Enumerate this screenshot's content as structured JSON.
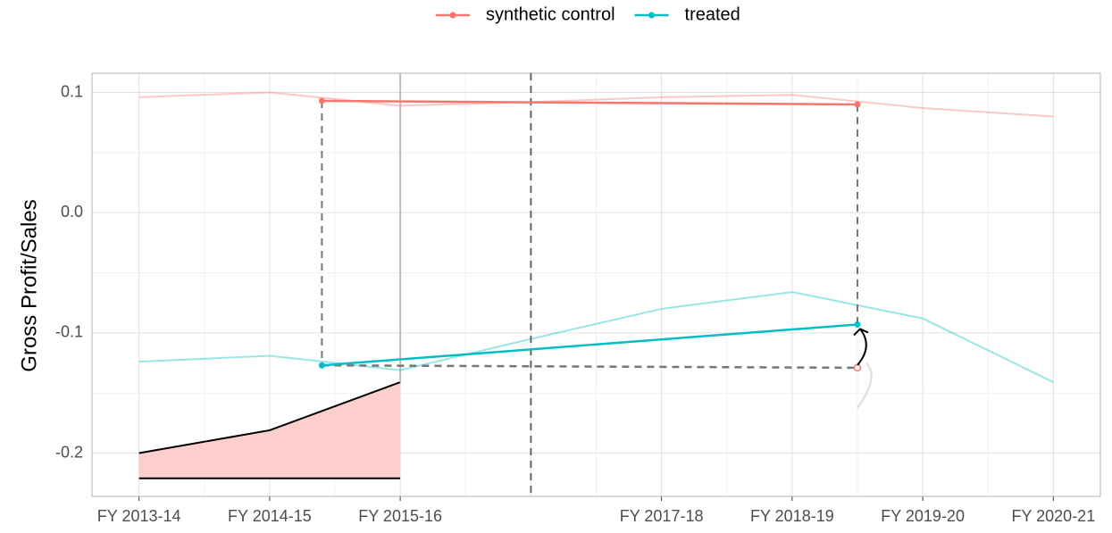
{
  "chart_data": {
    "type": "line",
    "y_label": "Gross Profit/Sales",
    "legend": "top",
    "x": [
      0,
      1,
      2,
      3,
      4,
      5,
      6,
      7
    ],
    "xlim": [
      -0.36,
      7.36
    ],
    "xticks": [
      {
        "value": 0,
        "label": "FY 2013-14"
      },
      {
        "value": 1,
        "label": "FY 2014-15"
      },
      {
        "value": 2,
        "label": "FY 2015-16"
      },
      {
        "value": 4,
        "label": "FY 2017-18"
      },
      {
        "value": 5,
        "label": "FY 2018-19"
      },
      {
        "value": 6,
        "label": "FY 2019-20"
      },
      {
        "value": 7,
        "label": "FY 2020-21"
      }
    ],
    "ylim": [
      -0.236,
      0.116
    ],
    "yticks": [
      -0.2,
      -0.1,
      {
        "value": 0,
        "label": "0.0"
      },
      0.1
    ],
    "grid": true,
    "series": [
      {
        "name": "synthetic control",
        "color": "#F8766D",
        "values": [
          0.096,
          0.1,
          0.089,
          0.092,
          0.096,
          0.098,
          0.087,
          0.08
        ]
      },
      {
        "name": "treated",
        "color": "#00BFC4",
        "values": [
          -0.124,
          -0.119,
          -0.131,
          -0.105,
          -0.08,
          -0.066,
          -0.088,
          -0.141
        ]
      }
    ],
    "treatment_x": 3,
    "overlay": {
      "x": [
        1.4,
        5.5
      ],
      "synthetic_control": [
        0.093,
        0.09
      ],
      "treated": [
        -0.127,
        -0.093
      ],
      "counterfactual": [
        -0.127,
        -0.129
      ]
    },
    "inset": {
      "x": [
        0,
        1,
        2
      ],
      "values": [
        -0.2,
        -0.181,
        -0.141
      ],
      "baseline": -0.221,
      "color": "#FCCFCC"
    }
  }
}
